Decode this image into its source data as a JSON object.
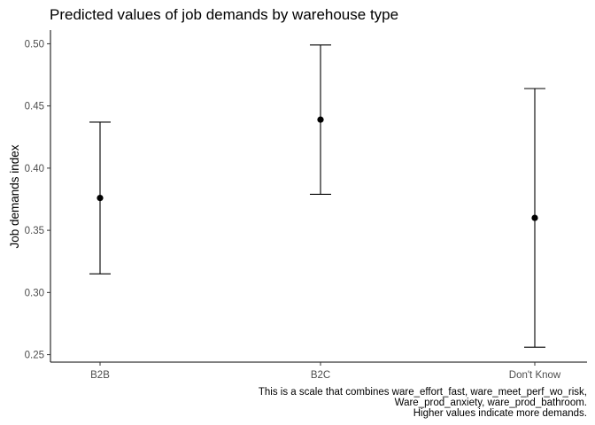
{
  "chart_data": {
    "type": "scatter",
    "title": "Predicted values of job demands by warehouse type",
    "xlabel": "",
    "ylabel": "Job demands index",
    "categories": [
      "B2B",
      "B2C",
      "Don't Know"
    ],
    "series": [
      {
        "values": [
          0.376,
          0.439,
          0.36
        ],
        "lower": [
          0.315,
          0.379,
          0.256
        ],
        "upper": [
          0.437,
          0.499,
          0.464
        ]
      }
    ],
    "yticks": [
      "0.25",
      "0.30",
      "0.35",
      "0.40",
      "0.45",
      "0.50"
    ],
    "ylim": [
      0.244,
      0.511
    ],
    "grid": false,
    "legend": "none",
    "caption": [
      "This is a scale that combines ware_effort_fast, ware_meet_perf_wo_risk,",
      "Ware_prod_anxiety, ware_prod_bathroom.",
      "Higher values indicate more demands."
    ],
    "colors": {
      "point": "#000000",
      "errorbar": "#000000",
      "axis": "#000000",
      "tick_text": "#4d4d4d"
    }
  }
}
